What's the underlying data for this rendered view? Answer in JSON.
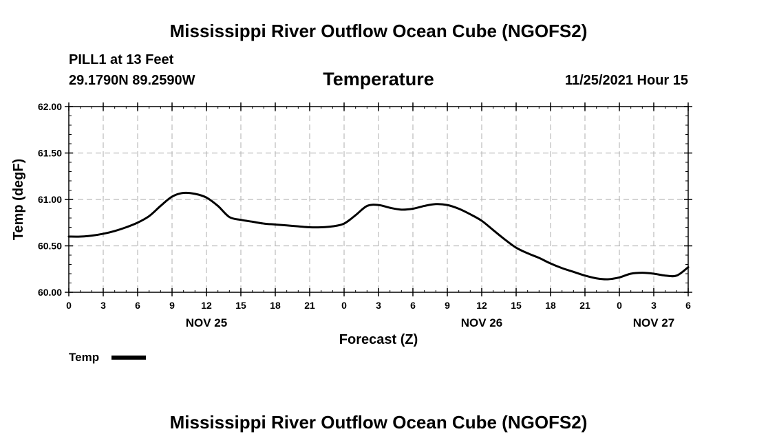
{
  "header": {
    "title": "Mississippi River Outflow Ocean Cube (NGOFS2)",
    "station": "PILL1 at 13 Feet",
    "coords": "29.1790N  89.2590W",
    "datetime": "11/25/2021 Hour 15"
  },
  "footer": {
    "title": "Mississippi River Outflow Ocean Cube (NGOFS2)"
  },
  "chart_data": {
    "type": "line",
    "title": "Temperature",
    "xlabel": "Forecast (Z)",
    "ylabel": "Temp (degF)",
    "ylim": [
      60.0,
      62.0
    ],
    "yticks": [
      "60.00",
      "60.50",
      "61.00",
      "61.50",
      "62.00"
    ],
    "xlim": [
      0,
      54
    ],
    "xticks": [
      "0",
      "3",
      "6",
      "9",
      "12",
      "15",
      "18",
      "21",
      "0",
      "3",
      "6",
      "9",
      "12",
      "15",
      "18",
      "21",
      "0",
      "3",
      "6"
    ],
    "date_labels": [
      "NOV 25",
      "NOV 26",
      "NOV 27"
    ],
    "grid": true,
    "legend": "bottom-left",
    "series": [
      {
        "name": "Temp",
        "color": "#000000",
        "x": [
          0,
          1,
          2,
          3,
          4,
          5,
          6,
          7,
          8,
          9,
          10,
          11,
          12,
          13,
          14,
          15,
          16,
          17,
          18,
          19,
          20,
          21,
          22,
          23,
          24,
          25,
          26,
          27,
          28,
          29,
          30,
          31,
          32,
          33,
          34,
          35,
          36,
          37,
          38,
          39,
          40,
          41,
          42,
          43,
          44,
          45,
          46,
          47,
          48,
          49,
          50,
          51,
          52,
          53,
          54
        ],
        "values": [
          60.6,
          60.6,
          60.61,
          60.63,
          60.66,
          60.7,
          60.75,
          60.82,
          60.93,
          61.03,
          61.07,
          61.06,
          61.02,
          60.93,
          60.81,
          60.78,
          60.76,
          60.74,
          60.73,
          60.72,
          60.71,
          60.7,
          60.7,
          60.71,
          60.74,
          60.83,
          60.93,
          60.94,
          60.91,
          60.89,
          60.9,
          60.93,
          60.95,
          60.94,
          60.9,
          60.84,
          60.77,
          60.67,
          60.57,
          60.48,
          60.42,
          60.37,
          60.31,
          60.26,
          60.22,
          60.18,
          60.15,
          60.14,
          60.16,
          60.2,
          60.21,
          60.2,
          60.18,
          60.18,
          60.27
        ]
      }
    ]
  }
}
